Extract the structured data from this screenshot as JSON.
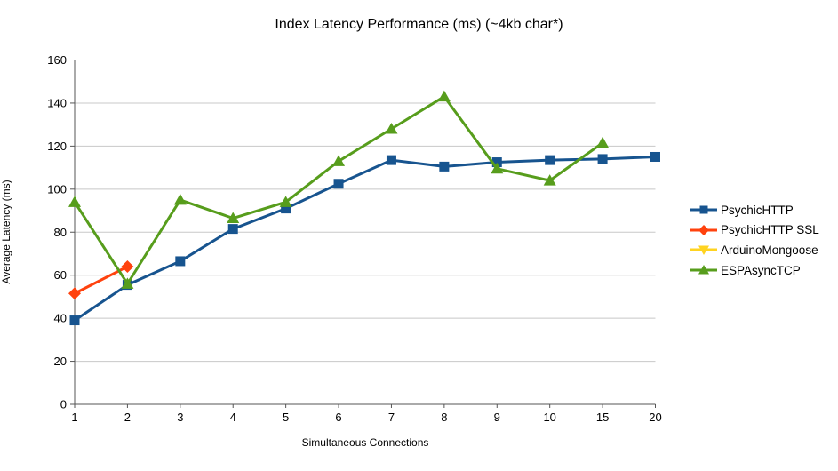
{
  "chart_data": {
    "type": "line",
    "title": "Index Latency Performance (ms) (~4kb char*)",
    "xlabel": "Simultaneous Connections",
    "ylabel": "Average Latency (ms)",
    "categories": [
      "1",
      "2",
      "3",
      "4",
      "5",
      "6",
      "7",
      "8",
      "9",
      "10",
      "15",
      "20"
    ],
    "series": [
      {
        "name": "PsychicHTTP",
        "color": "#17548F",
        "marker": "square",
        "values": [
          39,
          55.5,
          66.5,
          81.5,
          91,
          102.5,
          113.5,
          110.5,
          112.5,
          113.5,
          114,
          115
        ]
      },
      {
        "name": "PsychicHTTP SSL",
        "color": "#FF420E",
        "marker": "diamond",
        "values": [
          51.5,
          64,
          null,
          null,
          null,
          null,
          null,
          null,
          null,
          null,
          null,
          null
        ]
      },
      {
        "name": "ArduinoMongoose",
        "color": "#FFD320",
        "marker": "triangle-down",
        "values": [
          null,
          null,
          null,
          null,
          null,
          null,
          null,
          null,
          null,
          null,
          null,
          null
        ]
      },
      {
        "name": "ESPAsyncTCP",
        "color": "#579D1C",
        "marker": "triangle-up",
        "values": [
          94,
          56,
          95,
          86.5,
          94,
          113,
          128,
          143,
          109.5,
          104,
          121.5,
          null
        ]
      }
    ],
    "ylim": [
      0,
      160
    ],
    "ytick_step": 20,
    "grid": "horizontal",
    "legend_position": "right",
    "colors": {
      "grid": "#C8C8C8",
      "axis": "#555555",
      "text": "#000000",
      "background": "#FFFFFF"
    }
  }
}
